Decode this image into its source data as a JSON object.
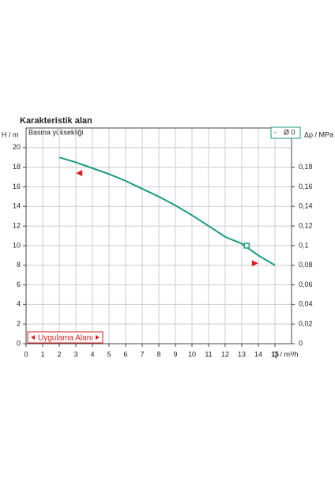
{
  "chart_data": {
    "type": "line",
    "title": "Karakteristik alan",
    "ylabel": "H / m",
    "y2label": "Δp / MPa",
    "xlabel": "Q / m³/h",
    "annotation": "Basma yüksekliği",
    "range_label": "Uygulama Alanı",
    "xlim": [
      0,
      16
    ],
    "xticks": [
      0,
      1,
      2,
      3,
      4,
      5,
      6,
      7,
      8,
      9,
      10,
      11,
      12,
      13,
      14,
      15
    ],
    "ylim": [
      0,
      22
    ],
    "yticks": [
      0,
      2,
      4,
      6,
      8,
      10,
      12,
      14,
      16,
      18,
      20
    ],
    "y2lim": [
      0,
      0.22
    ],
    "y2ticks": [
      0,
      {
        "value": 0.02,
        "label": "0,02"
      },
      {
        "value": 0.04,
        "label": "0,04"
      },
      {
        "value": 0.06,
        "label": "0,06"
      },
      {
        "value": 0.08,
        "label": "0,08"
      },
      {
        "value": 0.1,
        "label": "0,1"
      },
      {
        "value": 0.12,
        "label": "0,12"
      },
      {
        "value": 0.14,
        "label": "0,14"
      },
      {
        "value": 0.16,
        "label": "0,16"
      },
      {
        "value": 0.18,
        "label": "0,18"
      }
    ],
    "grid": true,
    "series": [
      {
        "name": "Ø 0",
        "color": "#1a9a82",
        "x": [
          2,
          3,
          4,
          5,
          6,
          7,
          8,
          9,
          10,
          11,
          12,
          13,
          14,
          15
        ],
        "values": [
          19,
          18.5,
          17.9,
          17.3,
          16.6,
          15.8,
          15,
          14.1,
          13.1,
          12,
          10.9,
          10.2,
          9,
          8
        ]
      }
    ],
    "operating_point": {
      "x": 13.3,
      "y": 10
    },
    "limit_markers": [
      {
        "x": 3.2,
        "y": 17.4,
        "direction": "left"
      },
      {
        "x": 13.8,
        "y": 8.2,
        "direction": "right"
      }
    ],
    "marker_color": "#d81e1e"
  }
}
